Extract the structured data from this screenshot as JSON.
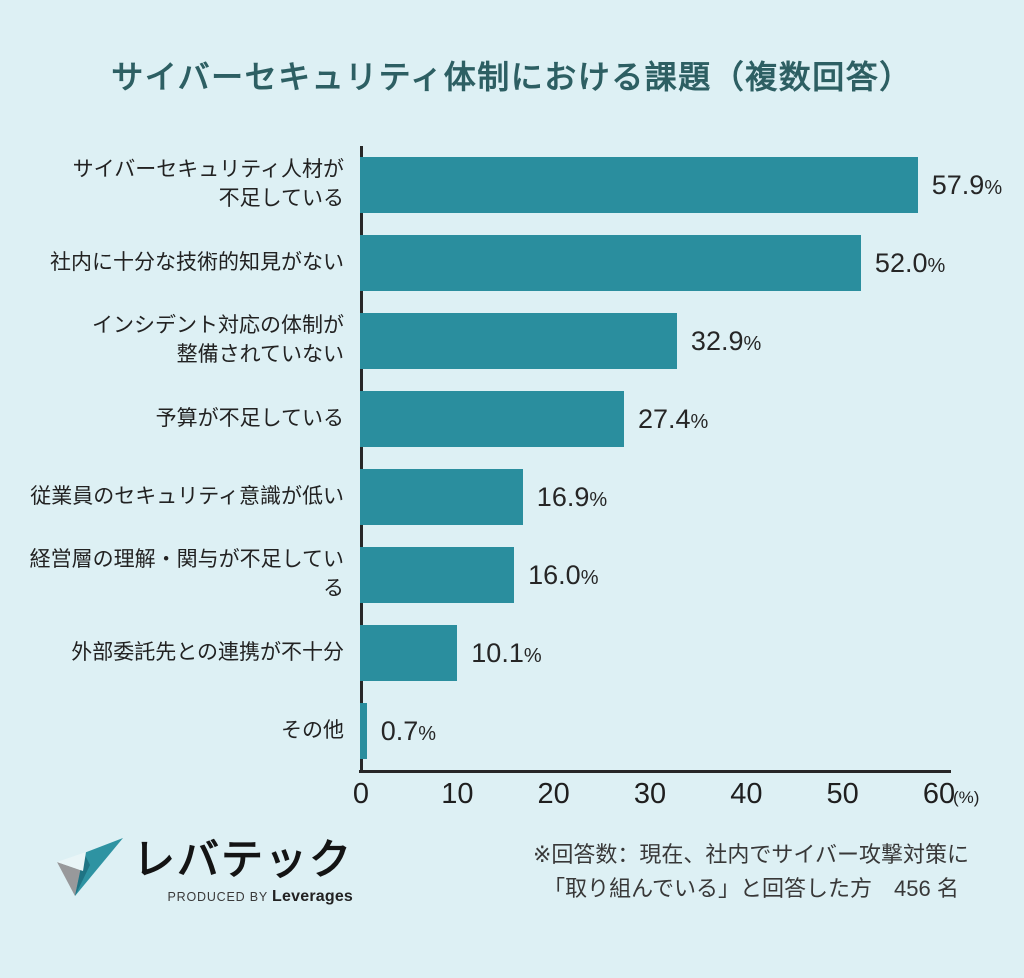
{
  "title": "サイバーセキュリティ体制における課題（複数回答）",
  "colors": {
    "background": "#ddf0f4",
    "bar": "#2a8e9e",
    "title_text": "#2d5f63",
    "axis": "#272727",
    "body_text": "#262626"
  },
  "chart_data": {
    "type": "bar",
    "orientation": "horizontal",
    "title": "サイバーセキュリティ体制における課題（複数回答）",
    "categories": [
      "サイバーセキュリティ人材が\n不足している",
      "社内に十分な技術的知見がない",
      "インシデント対応の体制が\n整備されていない",
      "予算が不足している",
      "従業員のセキュリティ意識が低い",
      "経営層の理解・関与が不足している",
      "外部委託先との連携が不十分",
      "その他"
    ],
    "values": [
      57.9,
      52.0,
      32.9,
      27.4,
      16.9,
      16.0,
      10.1,
      0.7
    ],
    "value_labels": [
      "57.9%",
      "52.0%",
      "32.9%",
      "27.4%",
      "16.9%",
      "16.0%",
      "10.1%",
      "0.7%"
    ],
    "xlabel": "",
    "ylabel": "",
    "xlim": [
      0,
      60
    ],
    "x_ticks": [
      0,
      10,
      20,
      30,
      40,
      50,
      60
    ],
    "x_unit": "(%)",
    "grid": false,
    "legend": null
  },
  "footer": {
    "logo": {
      "brand": "レバテック",
      "produced_by": "PRODUCED BY",
      "company": "Leverages"
    },
    "note_line1": "※回答数：現在、社内でサイバー攻撃対策に",
    "note_line2": "「取り組んでいる」と回答した方　456 名"
  }
}
